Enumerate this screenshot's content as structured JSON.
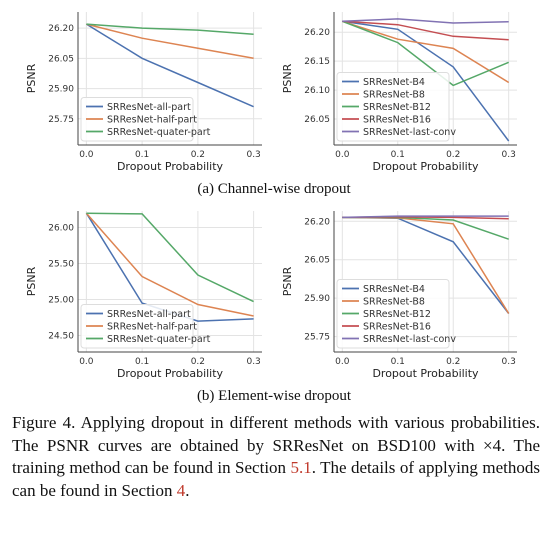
{
  "colors": {
    "blue": "#4c72b0",
    "orange": "#dd8452",
    "green": "#55a868",
    "red": "#c44e52",
    "purple": "#8172b3",
    "grid": "#e3e3e3"
  },
  "subcaptions": {
    "a": "(a) Channel-wise dropout",
    "b": "(b) Element-wise dropout"
  },
  "caption": {
    "text": "Figure 4.  Applying dropout in different methods with various probabilities.  The PSNR curves are obtained by SRResNet on BSD100 with ×4.  The training method can be found in Section ",
    "ref1": "5.1",
    "mid": ".  The details of applying methods can be found in Section ",
    "ref2": "4",
    "end": "."
  },
  "chart_data": [
    {
      "type": "line",
      "panel": "a-left",
      "xlabel": "Dropout Probability",
      "ylabel": "PSNR",
      "x": [
        0.0,
        0.1,
        0.2,
        0.3
      ],
      "xlim": [
        -0.015,
        0.315
      ],
      "ylim": [
        25.62,
        26.28
      ],
      "xticks": [
        "0.0",
        "0.1",
        "0.2",
        "0.3"
      ],
      "yticks": [
        25.75,
        25.9,
        26.05,
        26.2
      ],
      "ytick_labels": [
        "25.75",
        "25.90",
        "26.05",
        "26.20"
      ],
      "legend_position": "lower-left",
      "grid": true,
      "series": [
        {
          "name": "SRResNet-all-part",
          "color": "#4c72b0",
          "values": [
            26.22,
            26.05,
            25.93,
            25.81
          ]
        },
        {
          "name": "SRResNet-half-part",
          "color": "#dd8452",
          "values": [
            26.22,
            26.15,
            26.1,
            26.05
          ]
        },
        {
          "name": "SRResNet-quater-part",
          "color": "#55a868",
          "values": [
            26.22,
            26.2,
            26.19,
            26.17
          ]
        }
      ]
    },
    {
      "type": "line",
      "panel": "a-right",
      "xlabel": "Dropout Probability",
      "ylabel": "PSNR",
      "x": [
        0.0,
        0.1,
        0.2,
        0.3
      ],
      "xlim": [
        -0.015,
        0.315
      ],
      "ylim": [
        26.005,
        26.235
      ],
      "xticks": [
        "0.0",
        "0.1",
        "0.2",
        "0.3"
      ],
      "yticks": [
        26.05,
        26.1,
        26.15,
        26.2
      ],
      "ytick_labels": [
        "26.05",
        "26.10",
        "26.15",
        "26.20"
      ],
      "legend_position": "lower-left",
      "grid": true,
      "series": [
        {
          "name": "SRResNet-B4",
          "color": "#4c72b0",
          "values": [
            26.219,
            26.205,
            26.14,
            26.012
          ]
        },
        {
          "name": "SRResNet-B8",
          "color": "#dd8452",
          "values": [
            26.219,
            26.188,
            26.172,
            26.113
          ]
        },
        {
          "name": "SRResNet-B12",
          "color": "#55a868",
          "values": [
            26.219,
            26.182,
            26.108,
            26.148
          ]
        },
        {
          "name": "SRResNet-B16",
          "color": "#c44e52",
          "values": [
            26.219,
            26.213,
            26.193,
            26.187
          ]
        },
        {
          "name": "SRResNet-last-conv",
          "color": "#8172b3",
          "values": [
            26.219,
            26.223,
            26.216,
            26.218
          ]
        }
      ]
    },
    {
      "type": "line",
      "panel": "b-left",
      "xlabel": "Dropout Probability",
      "ylabel": "PSNR",
      "x": [
        0.0,
        0.1,
        0.2,
        0.3
      ],
      "xlim": [
        -0.015,
        0.315
      ],
      "ylim": [
        24.27,
        26.23
      ],
      "xticks": [
        "0.0",
        "0.1",
        "0.2",
        "0.3"
      ],
      "yticks": [
        24.5,
        25.0,
        25.5,
        26.0
      ],
      "ytick_labels": [
        "24.50",
        "25.00",
        "25.50",
        "26.00"
      ],
      "legend_position": "lower-left",
      "grid": true,
      "series": [
        {
          "name": "SRResNet-all-part",
          "color": "#4c72b0",
          "values": [
            26.2,
            24.95,
            24.7,
            24.73
          ]
        },
        {
          "name": "SRResNet-half-part",
          "color": "#dd8452",
          "values": [
            26.2,
            25.32,
            24.93,
            24.77
          ]
        },
        {
          "name": "SRResNet-quater-part",
          "color": "#55a868",
          "values": [
            26.2,
            26.19,
            25.34,
            24.97
          ]
        }
      ]
    },
    {
      "type": "line",
      "panel": "b-right",
      "xlabel": "Dropout Probability",
      "ylabel": "PSNR",
      "x": [
        0.0,
        0.1,
        0.2,
        0.3
      ],
      "xlim": [
        -0.015,
        0.315
      ],
      "ylim": [
        25.69,
        26.24
      ],
      "xticks": [
        "0.0",
        "0.1",
        "0.2",
        "0.3"
      ],
      "yticks": [
        25.75,
        25.9,
        26.05,
        26.2
      ],
      "ytick_labels": [
        "25.75",
        "25.90",
        "26.05",
        "26.20"
      ],
      "legend_position": "lower-left",
      "grid": true,
      "series": [
        {
          "name": "SRResNet-B4",
          "color": "#4c72b0",
          "values": [
            26.215,
            26.212,
            26.12,
            25.84
          ]
        },
        {
          "name": "SRResNet-B8",
          "color": "#dd8452",
          "values": [
            26.215,
            26.213,
            26.19,
            25.84
          ]
        },
        {
          "name": "SRResNet-B12",
          "color": "#55a868",
          "values": [
            26.215,
            26.215,
            26.205,
            26.13
          ]
        },
        {
          "name": "SRResNet-B16",
          "color": "#c44e52",
          "values": [
            26.215,
            26.217,
            26.215,
            26.21
          ]
        },
        {
          "name": "SRResNet-last-conv",
          "color": "#8172b3",
          "values": [
            26.215,
            26.22,
            26.22,
            26.22
          ]
        }
      ]
    }
  ]
}
